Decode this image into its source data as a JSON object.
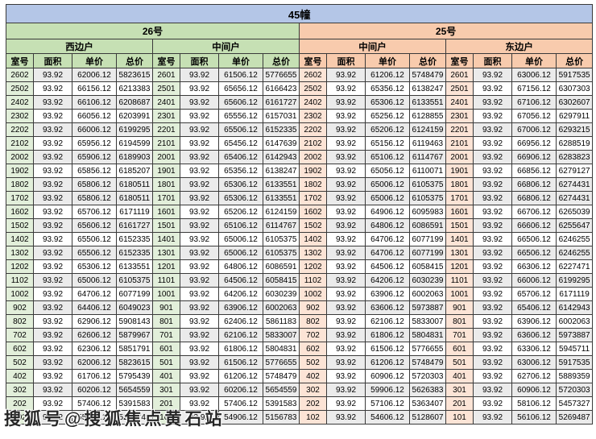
{
  "title": "45幢",
  "column_headers": [
    "室号",
    "面积",
    "单价",
    "总价"
  ],
  "buildings": [
    {
      "name": "26号",
      "units": [
        "西边户",
        "中间户"
      ]
    },
    {
      "name": "25号",
      "units": [
        "中间户",
        "东边户"
      ]
    }
  ],
  "colors": {
    "banner": "#b4c6e7",
    "building_26": "#c6e0b4",
    "building_25": "#f8cbad",
    "room_26": "#e2efda",
    "room_25": "#fce4d6",
    "stripe": "#ebebeb",
    "border": "#3a3a3a"
  },
  "watermark": "搜狐号@搜狐焦点黄石站",
  "sections": [
    {
      "building": "26号",
      "unit": "西边户",
      "rows": [
        [
          "2602",
          "93.92",
          "62006.12",
          "5823615"
        ],
        [
          "2502",
          "93.92",
          "66156.12",
          "6213383"
        ],
        [
          "2402",
          "93.92",
          "66106.12",
          "6208687"
        ],
        [
          "2302",
          "93.92",
          "66056.12",
          "6203991"
        ],
        [
          "2202",
          "93.92",
          "66006.12",
          "6199295"
        ],
        [
          "2102",
          "93.92",
          "65956.12",
          "6194599"
        ],
        [
          "2002",
          "93.92",
          "65906.12",
          "6189903"
        ],
        [
          "1902",
          "93.92",
          "65856.12",
          "6185207"
        ],
        [
          "1802",
          "93.92",
          "65806.12",
          "6180511"
        ],
        [
          "1702",
          "93.92",
          "65806.12",
          "6180511"
        ],
        [
          "1602",
          "93.92",
          "65706.12",
          "6171119"
        ],
        [
          "1502",
          "93.92",
          "65606.12",
          "6161727"
        ],
        [
          "1402",
          "93.92",
          "65506.12",
          "6152335"
        ],
        [
          "1302",
          "93.92",
          "65506.12",
          "6152335"
        ],
        [
          "1202",
          "93.92",
          "65306.12",
          "6133551"
        ],
        [
          "1102",
          "93.92",
          "65006.12",
          "6105375"
        ],
        [
          "1002",
          "93.92",
          "64706.12",
          "6077199"
        ],
        [
          "902",
          "93.92",
          "64406.12",
          "6049023"
        ],
        [
          "802",
          "93.92",
          "62906.12",
          "5908143"
        ],
        [
          "702",
          "93.92",
          "62606.12",
          "5879967"
        ],
        [
          "602",
          "93.92",
          "62306.12",
          "5851791"
        ],
        [
          "502",
          "93.92",
          "62006.12",
          "5823615"
        ],
        [
          "402",
          "93.92",
          "61706.12",
          "5795439"
        ],
        [
          "302",
          "93.92",
          "60206.12",
          "5654559"
        ],
        [
          "202",
          "93.92",
          "57406.12",
          "5391583"
        ],
        [
          "102",
          "93.92",
          "55406.12",
          "5203743"
        ]
      ]
    },
    {
      "building": "26号",
      "unit": "中间户",
      "rows": [
        [
          "2601",
          "93.92",
          "61506.12",
          "5776655"
        ],
        [
          "2501",
          "93.92",
          "65656.12",
          "6166423"
        ],
        [
          "2401",
          "93.92",
          "65606.12",
          "6161727"
        ],
        [
          "2301",
          "93.92",
          "65556.12",
          "6157031"
        ],
        [
          "2201",
          "93.92",
          "65506.12",
          "6152335"
        ],
        [
          "2101",
          "93.92",
          "65456.12",
          "6147639"
        ],
        [
          "2001",
          "93.92",
          "65406.12",
          "6142943"
        ],
        [
          "1901",
          "93.92",
          "65356.12",
          "6138247"
        ],
        [
          "1801",
          "93.92",
          "65306.12",
          "6133551"
        ],
        [
          "1701",
          "93.92",
          "65306.12",
          "6133551"
        ],
        [
          "1601",
          "93.92",
          "65206.12",
          "6124159"
        ],
        [
          "1501",
          "93.92",
          "65106.12",
          "6114767"
        ],
        [
          "1401",
          "93.92",
          "65006.12",
          "6105375"
        ],
        [
          "1301",
          "93.92",
          "65006.12",
          "6105375"
        ],
        [
          "1201",
          "93.92",
          "64806.12",
          "6086591"
        ],
        [
          "1101",
          "93.92",
          "64506.12",
          "6058415"
        ],
        [
          "1001",
          "93.92",
          "64206.12",
          "6030239"
        ],
        [
          "901",
          "93.92",
          "63906.12",
          "6002063"
        ],
        [
          "801",
          "93.92",
          "62406.12",
          "5861183"
        ],
        [
          "701",
          "93.92",
          "62106.12",
          "5833007"
        ],
        [
          "601",
          "93.92",
          "61806.12",
          "5804831"
        ],
        [
          "501",
          "93.92",
          "61506.12",
          "5776655"
        ],
        [
          "401",
          "93.92",
          "61206.12",
          "5748479"
        ],
        [
          "301",
          "93.92",
          "60206.12",
          "5654559"
        ],
        [
          "201",
          "93.92",
          "57406.12",
          "5391583"
        ],
        [
          "101",
          "93.92",
          "54906.12",
          "5156783"
        ]
      ]
    },
    {
      "building": "25号",
      "unit": "中间户",
      "rows": [
        [
          "2602",
          "93.92",
          "61206.12",
          "5748479"
        ],
        [
          "2502",
          "93.92",
          "65356.12",
          "6138247"
        ],
        [
          "2402",
          "93.92",
          "65306.12",
          "6133551"
        ],
        [
          "2302",
          "93.92",
          "65256.12",
          "6128855"
        ],
        [
          "2202",
          "93.92",
          "65206.12",
          "6124159"
        ],
        [
          "2102",
          "93.92",
          "65156.12",
          "6119463"
        ],
        [
          "2002",
          "93.92",
          "65106.12",
          "6114767"
        ],
        [
          "1902",
          "93.92",
          "65056.12",
          "6110071"
        ],
        [
          "1802",
          "93.92",
          "65006.12",
          "6105375"
        ],
        [
          "1702",
          "93.92",
          "65006.12",
          "6105375"
        ],
        [
          "1602",
          "93.92",
          "64906.12",
          "6095983"
        ],
        [
          "1502",
          "93.92",
          "64806.12",
          "6086591"
        ],
        [
          "1402",
          "93.92",
          "64706.12",
          "6077199"
        ],
        [
          "1302",
          "93.92",
          "64706.12",
          "6077199"
        ],
        [
          "1202",
          "93.92",
          "64506.12",
          "6058415"
        ],
        [
          "1102",
          "93.92",
          "64206.12",
          "6030239"
        ],
        [
          "1002",
          "93.92",
          "63906.12",
          "6002063"
        ],
        [
          "902",
          "93.92",
          "63606.12",
          "5973887"
        ],
        [
          "802",
          "93.92",
          "62106.12",
          "5833007"
        ],
        [
          "702",
          "93.92",
          "61806.12",
          "5804831"
        ],
        [
          "602",
          "93.92",
          "61506.12",
          "5776655"
        ],
        [
          "502",
          "93.92",
          "61206.12",
          "5748479"
        ],
        [
          "402",
          "93.92",
          "60906.12",
          "5720303"
        ],
        [
          "302",
          "93.92",
          "59906.12",
          "5626383"
        ],
        [
          "202",
          "93.92",
          "57106.12",
          "5363407"
        ],
        [
          "102",
          "93.92",
          "54606.12",
          "5128607"
        ]
      ]
    },
    {
      "building": "25号",
      "unit": "东边户",
      "rows": [
        [
          "2601",
          "93.92",
          "63006.12",
          "5917535"
        ],
        [
          "2501",
          "93.92",
          "67156.12",
          "6307303"
        ],
        [
          "2401",
          "93.92",
          "67106.12",
          "6302607"
        ],
        [
          "2301",
          "93.92",
          "67056.12",
          "6297911"
        ],
        [
          "2201",
          "93.92",
          "67006.12",
          "6293215"
        ],
        [
          "2101",
          "93.92",
          "66956.12",
          "6288519"
        ],
        [
          "2001",
          "93.92",
          "66906.12",
          "6283823"
        ],
        [
          "1901",
          "93.92",
          "66856.12",
          "6279127"
        ],
        [
          "1801",
          "93.92",
          "66806.12",
          "6274431"
        ],
        [
          "1701",
          "93.92",
          "66806.12",
          "6274431"
        ],
        [
          "1601",
          "93.92",
          "66706.12",
          "6265039"
        ],
        [
          "1501",
          "93.92",
          "66606.12",
          "6255647"
        ],
        [
          "1401",
          "93.92",
          "66506.12",
          "6246255"
        ],
        [
          "1301",
          "93.92",
          "66506.12",
          "6246255"
        ],
        [
          "1201",
          "93.92",
          "66306.12",
          "6227471"
        ],
        [
          "1101",
          "93.92",
          "66006.12",
          "6199295"
        ],
        [
          "1001",
          "93.92",
          "65706.12",
          "6171119"
        ],
        [
          "901",
          "93.92",
          "65406.12",
          "6142943"
        ],
        [
          "801",
          "93.92",
          "63906.12",
          "6002063"
        ],
        [
          "701",
          "93.92",
          "63606.12",
          "5973887"
        ],
        [
          "601",
          "93.92",
          "63306.12",
          "5945711"
        ],
        [
          "501",
          "93.92",
          "63006.12",
          "5917535"
        ],
        [
          "401",
          "93.92",
          "62706.12",
          "5889359"
        ],
        [
          "301",
          "93.92",
          "60906.12",
          "5720303"
        ],
        [
          "201",
          "93.92",
          "58106.12",
          "5457327"
        ],
        [
          "101",
          "93.92",
          "56106.12",
          "5269487"
        ]
      ]
    }
  ]
}
